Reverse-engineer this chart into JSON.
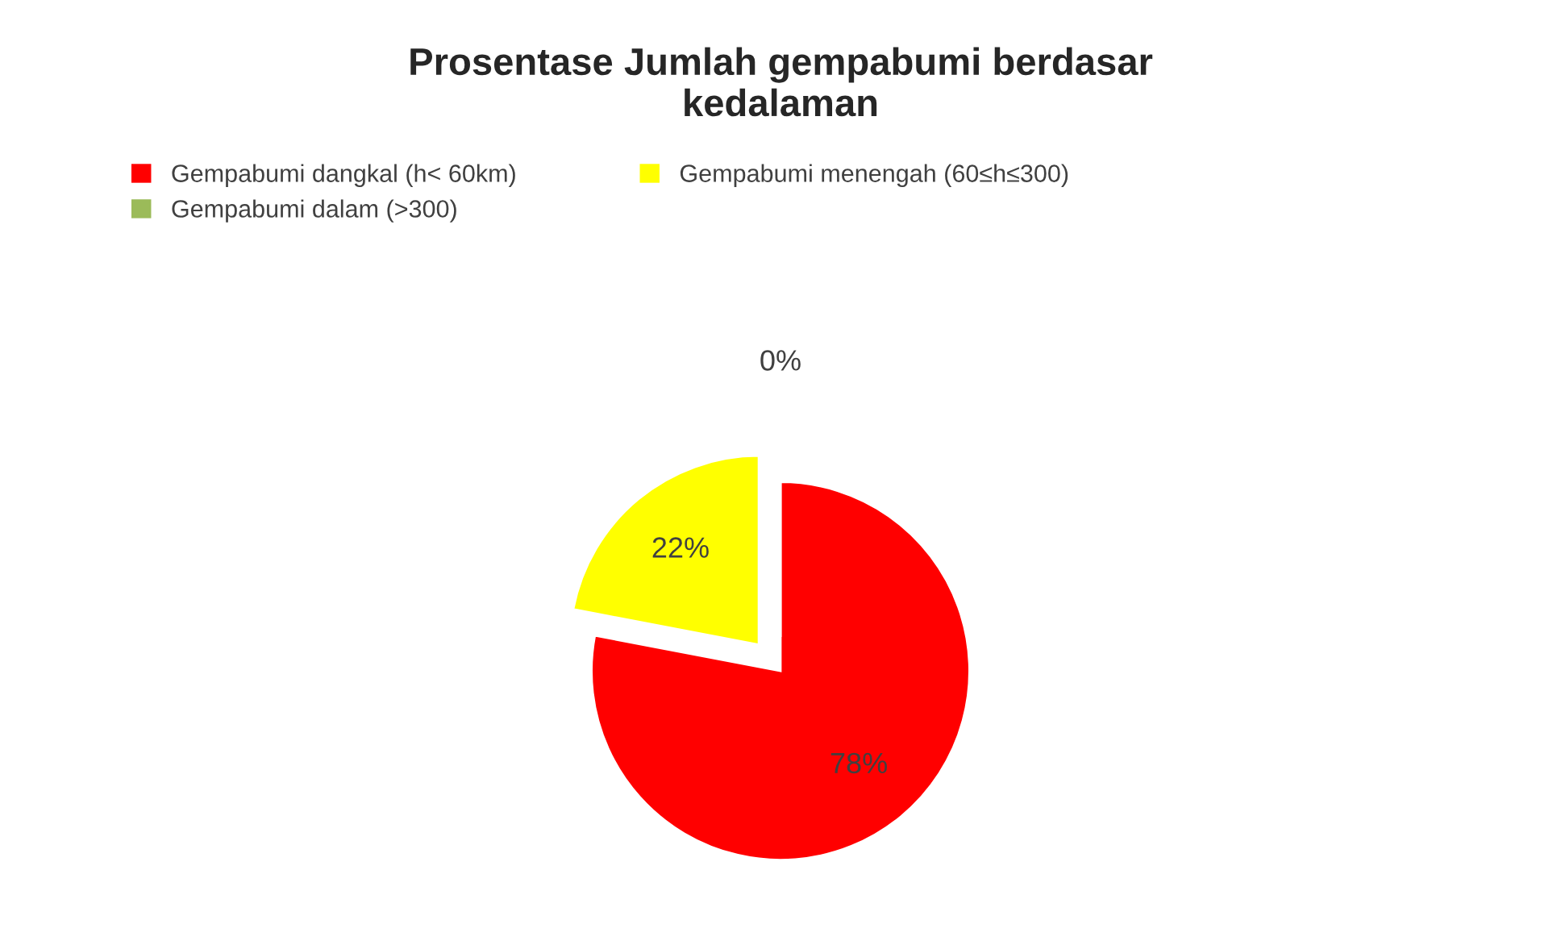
{
  "chart_data": {
    "type": "pie",
    "title": "Prosentase Jumlah gempabumi berdasar\nkedalaman",
    "categories": [
      "Gempabumi dangkal (h< 60km)",
      "Gempabumi menengah (60≤h≤300)",
      "Gempabumi dalam (>300)"
    ],
    "values": [
      78,
      22,
      0
    ],
    "colors": [
      "#ff0000",
      "#ffff00",
      "#9bbb59"
    ],
    "value_labels": [
      "78%",
      "22%",
      "0%"
    ],
    "legend": "top"
  }
}
